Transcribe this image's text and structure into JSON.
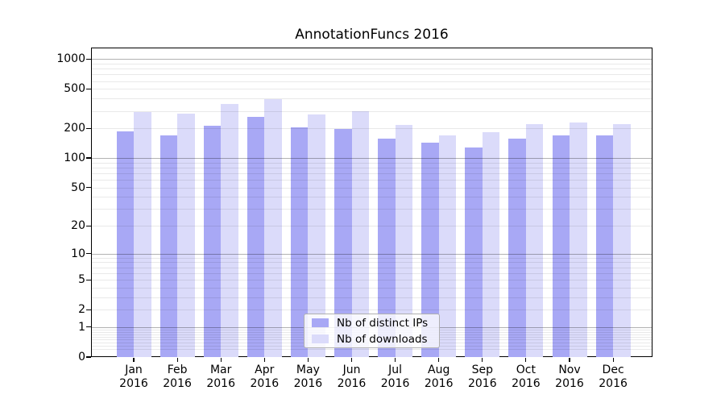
{
  "title": "AnnotationFuncs 2016",
  "chart_data": {
    "type": "bar",
    "title": "AnnotationFuncs 2016",
    "x_month_labels": [
      "Jan",
      "Feb",
      "Mar",
      "Apr",
      "May",
      "Jun",
      "Jul",
      "Aug",
      "Sep",
      "Oct",
      "Nov",
      "Dec"
    ],
    "x_year_label": "2016",
    "series": [
      {
        "name": "Nb of distinct IPs",
        "color": "#a8a8f5",
        "values": [
          187,
          171,
          212,
          259,
          205,
          197,
          158,
          142,
          128,
          158,
          170,
          169
        ]
      },
      {
        "name": "Nb of downloads",
        "color": "#dbdbfa",
        "values": [
          290,
          282,
          350,
          397,
          274,
          298,
          217,
          171,
          184,
          219,
          227,
          222
        ]
      }
    ],
    "y_axis": {
      "scale": "log10(value+1)",
      "ticks": [
        1000,
        500,
        200,
        100,
        50,
        20,
        10,
        5,
        2,
        1,
        0
      ],
      "visible_max": 1309
    },
    "grid": {
      "major_values": [
        1,
        10,
        100,
        1000
      ],
      "minor_values": [
        0.2,
        0.3,
        0.4,
        0.5,
        0.6,
        0.7,
        0.8,
        0.9,
        2,
        3,
        4,
        5,
        6,
        7,
        8,
        9,
        20,
        30,
        40,
        50,
        60,
        70,
        80,
        90,
        200,
        300,
        400,
        500,
        600,
        700,
        800,
        900
      ],
      "major_color": "rgba(0,0,0,0.30)",
      "minor_color": "rgba(0,0,0,0.085)"
    },
    "legend": {
      "items": [
        "Nb of distinct IPs",
        "Nb of downloads"
      ],
      "position": "lower center"
    },
    "colors": {
      "axis": "#000000",
      "text": "#000000",
      "background": "#ffffff"
    }
  }
}
